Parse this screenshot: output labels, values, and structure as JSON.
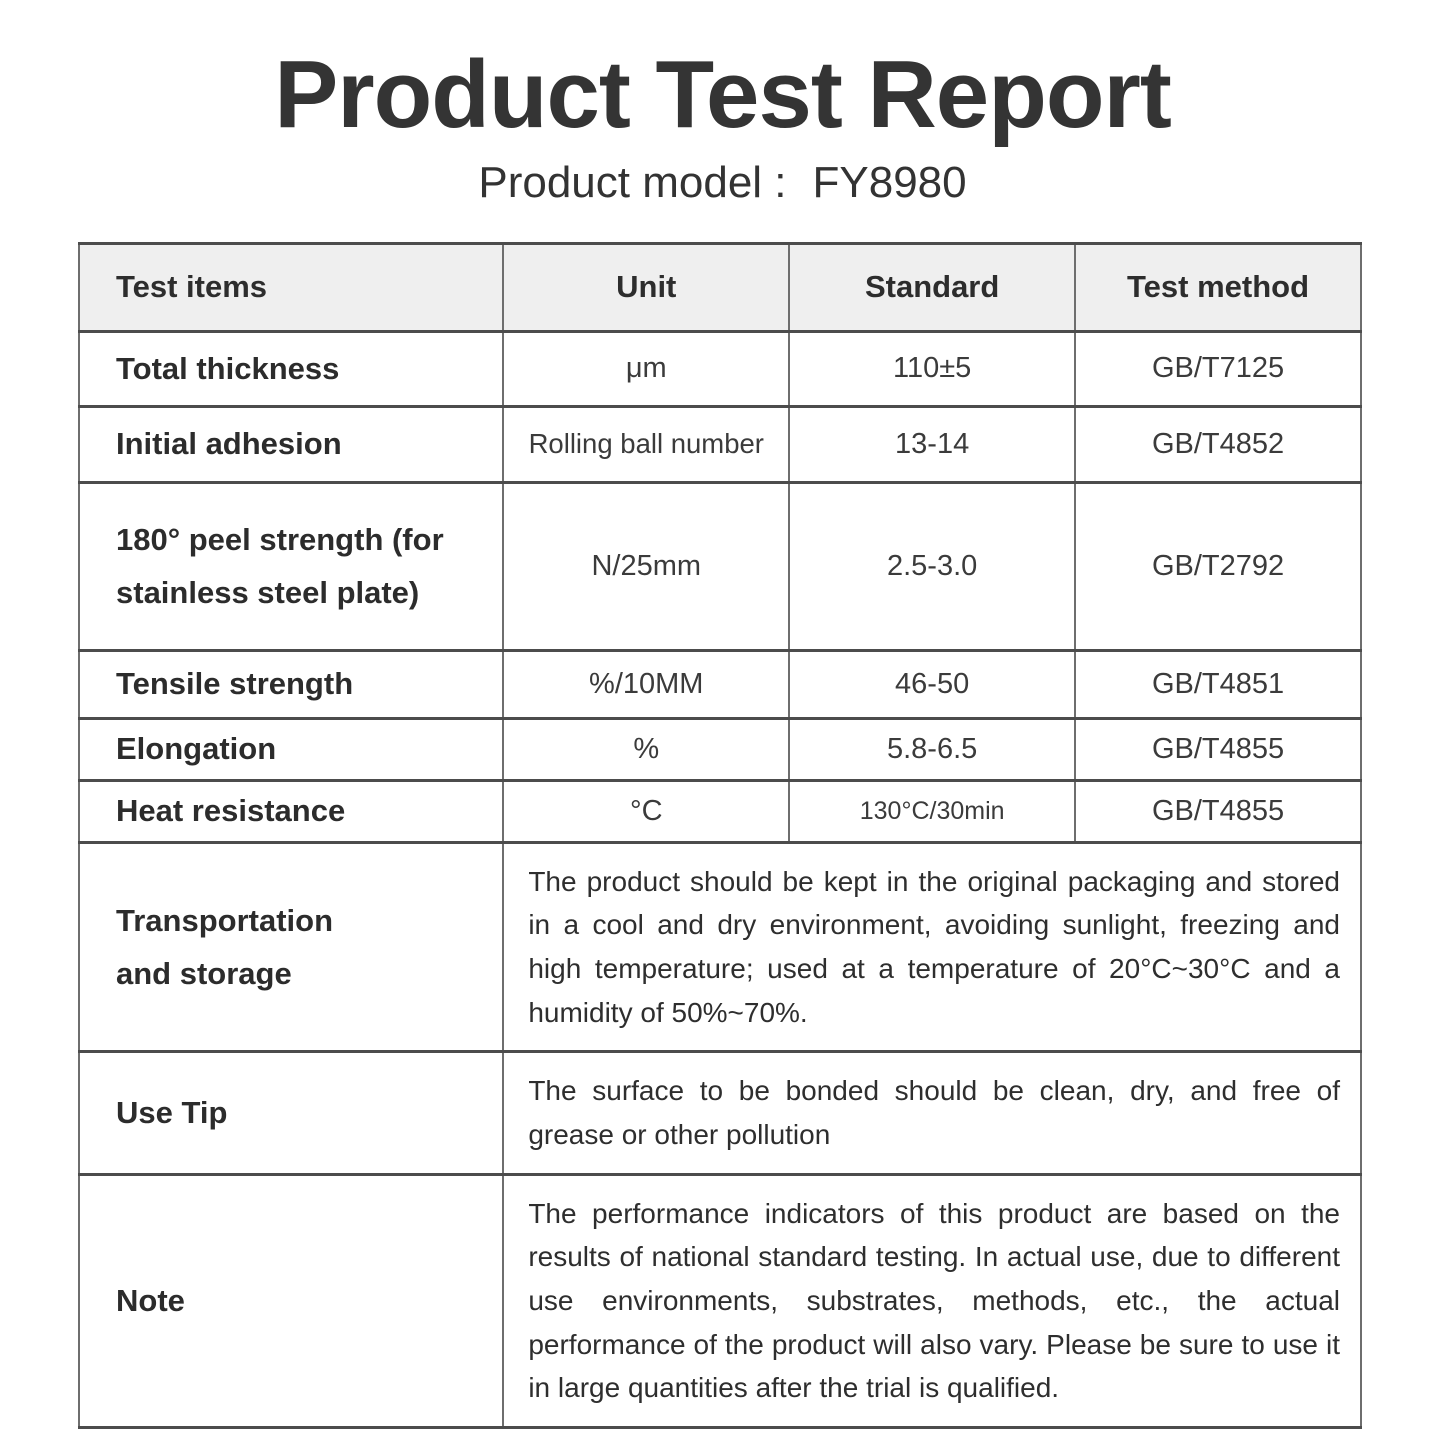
{
  "header": {
    "title": "Product Test Report",
    "model_label": "Product model :",
    "model_value": "FY8980"
  },
  "table": {
    "headers": [
      "Test items",
      "Unit",
      "Standard",
      "Test method"
    ],
    "rows": [
      {
        "item": "Total thickness",
        "unit": "μm",
        "standard": "110±5",
        "method": "GB/T7125"
      },
      {
        "item": "Initial adhesion",
        "unit": "Rolling ball number",
        "standard": "13-14",
        "method": "GB/T4852"
      },
      {
        "item": "180° peel strength (for stainless steel plate)",
        "unit": "N/25mm",
        "standard": "2.5-3.0",
        "method": "GB/T2792"
      },
      {
        "item": "Tensile strength",
        "unit": "%/10MM",
        "standard": "46-50",
        "method": "GB/T4851"
      },
      {
        "item": "Elongation",
        "unit": "%",
        "standard": "5.8-6.5",
        "method": "GB/T4855"
      },
      {
        "item": "Heat resistance",
        "unit": "°C",
        "standard": "130°C/30min",
        "method": "GB/T4855"
      }
    ],
    "info_rows": [
      {
        "item": "Transportation and storage",
        "text": "The product should be kept in the original packaging and stored in a cool and dry environment, avoiding sunlight, freezing and high temperature; used at a temperature of 20°C~30°C and a humidity of 50%~70%."
      },
      {
        "item": "Use Tip",
        "text": "The surface to be bonded should be clean, dry, and free of grease or other pollution"
      },
      {
        "item": "Note",
        "text": "The performance indicators of this product are based on the results of national standard testing. In actual use, due to different use environments, substrates, methods, etc., the actual performance of the product will also vary. Please be sure to use it in large quantities after the trial is qualified."
      }
    ],
    "colors": {
      "header_bg": "#efefef",
      "border_horizontal": "#4c4c4c",
      "border_vertical": "#6e6e6e",
      "text": "#303030"
    }
  }
}
